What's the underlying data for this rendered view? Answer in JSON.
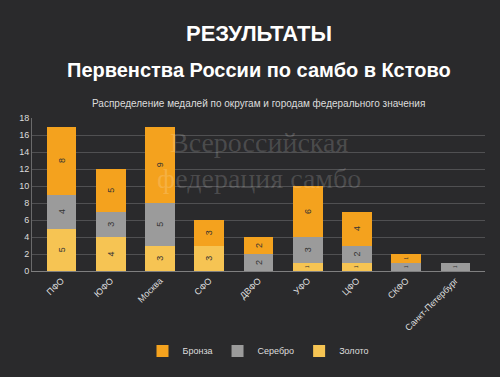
{
  "chart_data": {
    "type": "bar",
    "title": "РЕЗУЛЬТАТЫ",
    "subtitle": "Первенства России по самбо в Кстово",
    "annotations": [
      "Распределение медалей по округам и городам федерального значения",
      "Всероссийская федерация самбо"
    ],
    "categories": [
      "ПФО",
      "ЮФО",
      "Москва",
      "СФО",
      "ДВФО",
      "УФО",
      "ЦФО",
      "СКФО",
      "Санкт-Петербург"
    ],
    "series": [
      {
        "name": "Золото",
        "color": "#f6c453",
        "values": [
          5,
          4,
          3,
          3,
          0,
          1,
          1,
          0,
          0
        ]
      },
      {
        "name": "Серебро",
        "color": "#9b9b9b",
        "values": [
          4,
          3,
          5,
          0,
          2,
          3,
          2,
          1,
          1
        ]
      },
      {
        "name": "Бронза",
        "color": "#f4a21e",
        "values": [
          8,
          5,
          9,
          3,
          2,
          6,
          4,
          1,
          0
        ]
      }
    ],
    "stacked": true,
    "data_labels": true,
    "ylim": [
      0,
      18
    ],
    "yticks": [
      0,
      2,
      4,
      6,
      8,
      10,
      12,
      14,
      16,
      18
    ],
    "grid": true,
    "legend": "bottom"
  }
}
